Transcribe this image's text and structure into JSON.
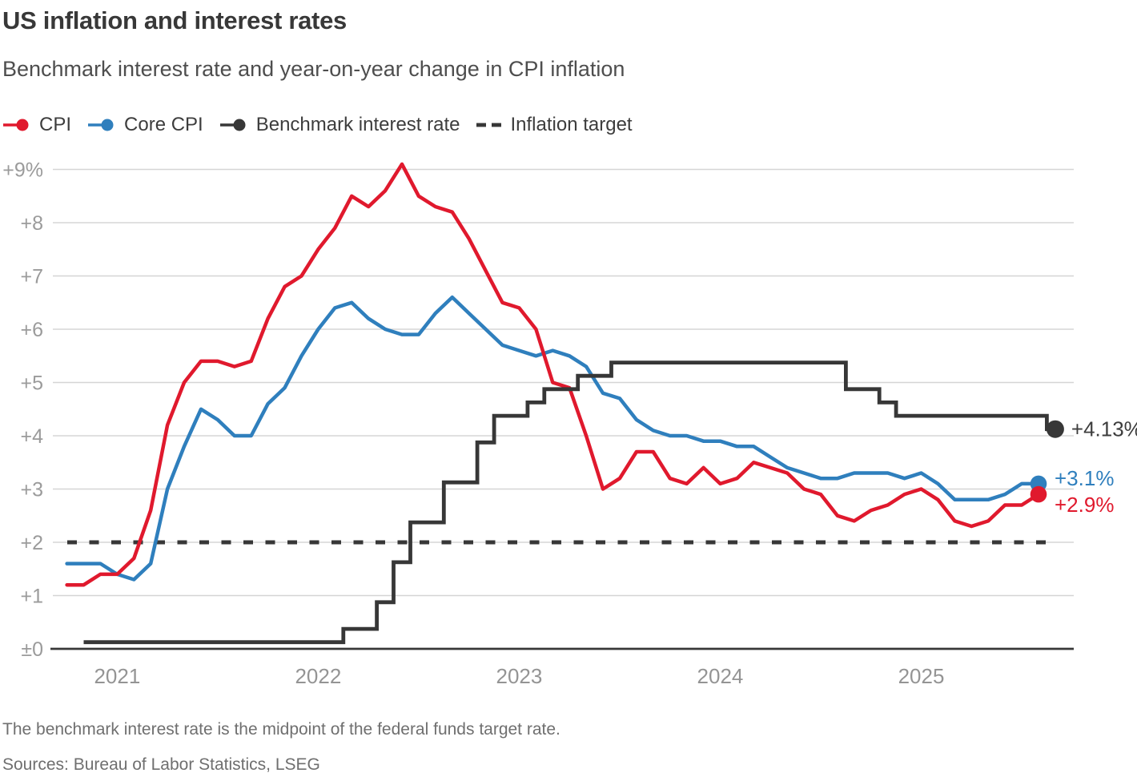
{
  "header": {
    "title": "US inflation and interest rates",
    "subtitle": "Benchmark interest rate and year-on-year change in CPI inflation"
  },
  "legend": {
    "items": [
      {
        "label": "CPI",
        "color": "#e0192d",
        "swatch": "line-dot"
      },
      {
        "label": "Core CPI",
        "color": "#2f7fbd",
        "swatch": "line-dot"
      },
      {
        "label": "Benchmark interest rate",
        "color": "#373737",
        "swatch": "line-dot"
      },
      {
        "label": "Inflation target",
        "color": "#373737",
        "swatch": "dashes"
      }
    ]
  },
  "footer": {
    "note": "The benchmark interest rate is the midpoint of the federal funds target rate.",
    "sources": "Sources: Bureau of Labor Statistics, LSEG"
  },
  "chart_data": {
    "type": "line",
    "title": "US inflation and interest rates",
    "subtitle": "Benchmark interest rate and year-on-year change in CPI inflation",
    "x_unit": "month",
    "x_start": "2020-10",
    "x_end": "2025-09",
    "ylim": [
      0,
      9.35
    ],
    "grid": true,
    "yticks": [
      {
        "value": 9,
        "label": "+9%"
      },
      {
        "value": 8,
        "label": "+8"
      },
      {
        "value": 7,
        "label": "+7"
      },
      {
        "value": 6,
        "label": "+6"
      },
      {
        "value": 5,
        "label": "+5"
      },
      {
        "value": 4,
        "label": "+4"
      },
      {
        "value": 3,
        "label": "+3"
      },
      {
        "value": 2,
        "label": "+2"
      },
      {
        "value": 1,
        "label": "+1"
      },
      {
        "value": 0,
        "label": "±0"
      }
    ],
    "xticks": [
      {
        "label": "2021",
        "month_index": 3
      },
      {
        "label": "2022",
        "month_index": 15
      },
      {
        "label": "2023",
        "month_index": 27
      },
      {
        "label": "2024",
        "month_index": 39
      },
      {
        "label": "2025",
        "month_index": 51
      }
    ],
    "series": [
      {
        "name": "CPI",
        "type": "line",
        "color": "#e0192d",
        "start_index": 0,
        "end_dot": true,
        "end_label": "+2.9%",
        "end_label_position": "below",
        "values": [
          1.2,
          1.2,
          1.4,
          1.4,
          1.7,
          2.6,
          4.2,
          5.0,
          5.4,
          5.4,
          5.3,
          5.4,
          6.2,
          6.8,
          7.0,
          7.5,
          7.9,
          8.5,
          8.3,
          8.6,
          9.1,
          8.5,
          8.3,
          8.2,
          7.7,
          7.1,
          6.5,
          6.4,
          6.0,
          5.0,
          4.9,
          4.0,
          3.0,
          3.2,
          3.7,
          3.7,
          3.2,
          3.1,
          3.4,
          3.1,
          3.2,
          3.5,
          3.4,
          3.3,
          3.0,
          2.9,
          2.5,
          2.4,
          2.6,
          2.7,
          2.9,
          3.0,
          2.8,
          2.4,
          2.3,
          2.4,
          2.7,
          2.7,
          2.9
        ]
      },
      {
        "name": "Core CPI",
        "type": "line",
        "color": "#2f7fbd",
        "start_index": 0,
        "end_dot": true,
        "end_label": "+3.1%",
        "end_label_position": "above",
        "values": [
          1.6,
          1.6,
          1.6,
          1.4,
          1.3,
          1.6,
          3.0,
          3.8,
          4.5,
          4.3,
          4.0,
          4.0,
          4.6,
          4.9,
          5.5,
          6.0,
          6.4,
          6.5,
          6.2,
          6.0,
          5.9,
          5.9,
          6.3,
          6.6,
          6.3,
          6.0,
          5.7,
          5.6,
          5.5,
          5.6,
          5.5,
          5.3,
          4.8,
          4.7,
          4.3,
          4.1,
          4.0,
          4.0,
          3.9,
          3.9,
          3.8,
          3.8,
          3.6,
          3.4,
          3.3,
          3.2,
          3.2,
          3.3,
          3.3,
          3.3,
          3.2,
          3.3,
          3.1,
          2.8,
          2.8,
          2.8,
          2.9,
          3.1,
          3.1
        ]
      },
      {
        "name": "Benchmark interest rate",
        "type": "step",
        "color": "#373737",
        "start_index": 1,
        "end_dot": true,
        "end_label": "+4.13%",
        "end_label_color": "#3d3d3d",
        "end_label_position": "middle",
        "values": [
          0.125,
          0.125,
          0.125,
          0.125,
          0.125,
          0.125,
          0.125,
          0.125,
          0.125,
          0.125,
          0.125,
          0.125,
          0.125,
          0.125,
          0.125,
          0.125,
          0.375,
          0.375,
          0.875,
          1.625,
          2.375,
          2.375,
          3.125,
          3.125,
          3.875,
          4.375,
          4.375,
          4.625,
          4.875,
          4.875,
          5.125,
          5.125,
          5.375,
          5.375,
          5.375,
          5.375,
          5.375,
          5.375,
          5.375,
          5.375,
          5.375,
          5.375,
          5.375,
          5.375,
          5.375,
          5.375,
          4.875,
          4.875,
          4.625,
          4.375,
          4.375,
          4.375,
          4.375,
          4.375,
          4.375,
          4.375,
          4.375,
          4.375,
          4.125
        ]
      },
      {
        "name": "Inflation target",
        "type": "dashed-constant",
        "color": "#373737",
        "value": 2
      }
    ]
  }
}
